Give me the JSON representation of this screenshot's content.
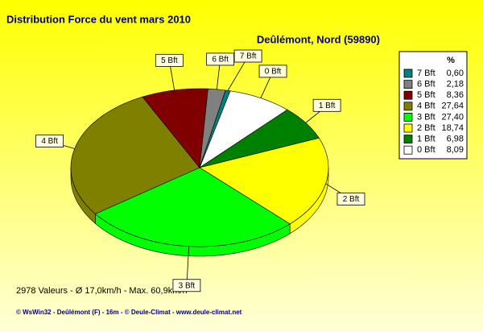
{
  "chart_data": {
    "type": "pie",
    "title": "Distribution Force du vent  mars 2010",
    "subtitle": "Deûlémont, Nord (59890)",
    "legend_header": "%",
    "categories": [
      "7 Bft",
      "6 Bft",
      "5 Bft",
      "4 Bft",
      "3 Bft",
      "2 Bft",
      "1 Bft",
      "0 Bft"
    ],
    "values": [
      0.6,
      2.18,
      8.36,
      27.64,
      27.4,
      18.74,
      6.98,
      8.09
    ],
    "value_labels": [
      "0,60",
      "2,18",
      "8,36",
      "27,64",
      "27,40",
      "18,74",
      "6,98",
      "8,09"
    ],
    "colors": [
      "#008080",
      "#808080",
      "#800000",
      "#808000",
      "#00ff00",
      "#ffff00",
      "#008000",
      "#ffffff"
    ],
    "legend": "top-right",
    "footer": "2978 Valeurs   -   Ø 17,0km/h  -  Max. 60,9km/h",
    "credit": "© WsWin32  -  Deûlémont (F) - 16m  -  © Deule-Climat - www.deule-climat.net"
  }
}
